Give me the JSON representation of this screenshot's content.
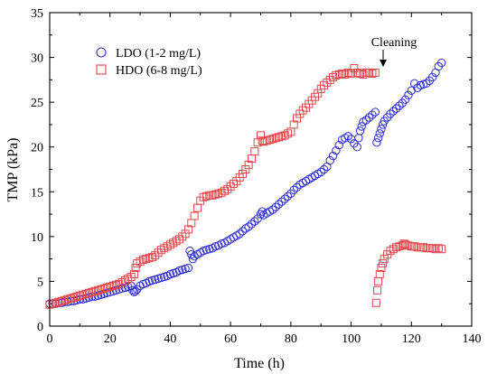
{
  "chart_data": {
    "type": "scatter",
    "title": "",
    "xlabel": "Time (h)",
    "ylabel": "TMP (kPa)",
    "xlim": [
      0,
      140
    ],
    "ylim": [
      0,
      35
    ],
    "xticks": [
      0,
      20,
      40,
      60,
      80,
      100,
      120,
      140
    ],
    "yticks": [
      0,
      5,
      10,
      15,
      20,
      25,
      30,
      35
    ],
    "grid": false,
    "legend_position": "top-left",
    "annotation": {
      "text": "Cleaning",
      "x": 109,
      "y": 29.2
    },
    "series": [
      {
        "name": "LDO (1-2 mg/L)",
        "marker": "circle",
        "color": "#2b2bd6",
        "points": [
          [
            0,
            2.5
          ],
          [
            1,
            2.5
          ],
          [
            2,
            2.5
          ],
          [
            3,
            2.6
          ],
          [
            4,
            2.6
          ],
          [
            5,
            2.7
          ],
          [
            6,
            2.7
          ],
          [
            7,
            2.8
          ],
          [
            8,
            2.8
          ],
          [
            9,
            2.9
          ],
          [
            10,
            3.0
          ],
          [
            11,
            3.0
          ],
          [
            12,
            3.1
          ],
          [
            13,
            3.2
          ],
          [
            14,
            3.3
          ],
          [
            15,
            3.3
          ],
          [
            16,
            3.4
          ],
          [
            17,
            3.5
          ],
          [
            18,
            3.6
          ],
          [
            19,
            3.7
          ],
          [
            20,
            3.8
          ],
          [
            21,
            3.9
          ],
          [
            22,
            4.0
          ],
          [
            23,
            4.1
          ],
          [
            24,
            4.2
          ],
          [
            25,
            4.3
          ],
          [
            26,
            4.4
          ],
          [
            27,
            4.5
          ],
          [
            27.5,
            4.0
          ],
          [
            28,
            3.8
          ],
          [
            28.5,
            3.9
          ],
          [
            29,
            4.1
          ],
          [
            30,
            4.5
          ],
          [
            31,
            4.7
          ],
          [
            32,
            4.8
          ],
          [
            33,
            5.0
          ],
          [
            34,
            5.1
          ],
          [
            35,
            5.2
          ],
          [
            36,
            5.3
          ],
          [
            37,
            5.4
          ],
          [
            38,
            5.5
          ],
          [
            39,
            5.6
          ],
          [
            40,
            5.8
          ],
          [
            41,
            5.9
          ],
          [
            42,
            6.0
          ],
          [
            43,
            6.2
          ],
          [
            44,
            6.3
          ],
          [
            45,
            6.4
          ],
          [
            46,
            6.5
          ],
          [
            46.5,
            8.4
          ],
          [
            47,
            8.0
          ],
          [
            47.5,
            7.5
          ],
          [
            48,
            7.8
          ],
          [
            49,
            8.0
          ],
          [
            50,
            8.2
          ],
          [
            51,
            8.4
          ],
          [
            52,
            8.5
          ],
          [
            53,
            8.6
          ],
          [
            54,
            8.7
          ],
          [
            55,
            8.9
          ],
          [
            56,
            9.0
          ],
          [
            57,
            9.2
          ],
          [
            58,
            9.3
          ],
          [
            59,
            9.5
          ],
          [
            60,
            9.7
          ],
          [
            61,
            9.9
          ],
          [
            62,
            10.1
          ],
          [
            63,
            10.3
          ],
          [
            64,
            10.6
          ],
          [
            65,
            10.9
          ],
          [
            66,
            11.1
          ],
          [
            67,
            11.4
          ],
          [
            68,
            11.7
          ],
          [
            69,
            12.0
          ],
          [
            70,
            12.5
          ],
          [
            70.5,
            12.8
          ],
          [
            71,
            12.4
          ],
          [
            72,
            12.6
          ],
          [
            73,
            12.8
          ],
          [
            74,
            13.0
          ],
          [
            75,
            13.3
          ],
          [
            76,
            13.6
          ],
          [
            77,
            13.9
          ],
          [
            78,
            14.2
          ],
          [
            79,
            14.5
          ],
          [
            80,
            14.8
          ],
          [
            81,
            15.2
          ],
          [
            82,
            15.5
          ],
          [
            83,
            15.8
          ],
          [
            84,
            16.0
          ],
          [
            85,
            16.2
          ],
          [
            86,
            16.4
          ],
          [
            87,
            16.6
          ],
          [
            88,
            16.8
          ],
          [
            89,
            17.0
          ],
          [
            90,
            17.2
          ],
          [
            91,
            17.5
          ],
          [
            92,
            17.8
          ],
          [
            93,
            18.5
          ],
          [
            94,
            19.0
          ],
          [
            95,
            19.6
          ],
          [
            96,
            20.2
          ],
          [
            97,
            20.8
          ],
          [
            98,
            21.0
          ],
          [
            99,
            21.2
          ],
          [
            100,
            20.9
          ],
          [
            101,
            20.4
          ],
          [
            102,
            20.0
          ],
          [
            102.5,
            21.0
          ],
          [
            103,
            21.8
          ],
          [
            103.5,
            22.3
          ],
          [
            104,
            22.8
          ],
          [
            105,
            23.0
          ],
          [
            106,
            23.3
          ],
          [
            107,
            23.6
          ],
          [
            108,
            23.9
          ],
          [
            108.5,
            20.5
          ],
          [
            109,
            21.0
          ],
          [
            109.5,
            21.5
          ],
          [
            110,
            22.0
          ],
          [
            110.5,
            22.5
          ],
          [
            111,
            22.9
          ],
          [
            112,
            23.3
          ],
          [
            113,
            23.7
          ],
          [
            114,
            24.0
          ],
          [
            115,
            24.3
          ],
          [
            116,
            24.6
          ],
          [
            117,
            24.9
          ],
          [
            118,
            25.3
          ],
          [
            119,
            25.8
          ],
          [
            120,
            26.3
          ],
          [
            121,
            27.1
          ],
          [
            122,
            26.6
          ],
          [
            123,
            26.9
          ],
          [
            124,
            27.0
          ],
          [
            125,
            27.1
          ],
          [
            126,
            27.4
          ],
          [
            127,
            27.8
          ],
          [
            128,
            28.3
          ],
          [
            129,
            29.0
          ],
          [
            130,
            29.4
          ]
        ]
      },
      {
        "name": "HDO (6-8 mg/L)",
        "marker": "square",
        "color": "#e0464a",
        "points": [
          [
            0,
            2.4
          ],
          [
            1,
            2.5
          ],
          [
            2,
            2.6
          ],
          [
            3,
            2.7
          ],
          [
            4,
            2.8
          ],
          [
            5,
            2.9
          ],
          [
            6,
            3.0
          ],
          [
            7,
            3.1
          ],
          [
            8,
            3.2
          ],
          [
            9,
            3.3
          ],
          [
            10,
            3.4
          ],
          [
            11,
            3.5
          ],
          [
            12,
            3.6
          ],
          [
            13,
            3.7
          ],
          [
            14,
            3.8
          ],
          [
            15,
            3.9
          ],
          [
            16,
            4.0
          ],
          [
            17,
            4.1
          ],
          [
            18,
            4.2
          ],
          [
            19,
            4.3
          ],
          [
            20,
            4.4
          ],
          [
            21,
            4.5
          ],
          [
            22,
            4.6
          ],
          [
            23,
            4.7
          ],
          [
            24,
            4.9
          ],
          [
            25,
            5.1
          ],
          [
            26,
            5.3
          ],
          [
            27,
            5.5
          ],
          [
            28,
            5.8
          ],
          [
            28.5,
            6.5
          ],
          [
            29,
            7.0
          ],
          [
            30,
            7.2
          ],
          [
            31,
            7.4
          ],
          [
            32,
            7.5
          ],
          [
            33,
            7.6
          ],
          [
            34,
            7.7
          ],
          [
            35,
            7.9
          ],
          [
            36,
            8.2
          ],
          [
            37,
            8.5
          ],
          [
            38,
            8.7
          ],
          [
            39,
            8.9
          ],
          [
            40,
            9.1
          ],
          [
            41,
            9.3
          ],
          [
            42,
            9.5
          ],
          [
            43,
            9.7
          ],
          [
            44,
            10.0
          ],
          [
            45,
            10.3
          ],
          [
            46,
            10.8
          ],
          [
            47,
            11.5
          ],
          [
            48,
            12.3
          ],
          [
            49,
            13.2
          ],
          [
            50,
            14.0
          ],
          [
            51,
            14.4
          ],
          [
            52,
            14.5
          ],
          [
            53,
            14.6
          ],
          [
            54,
            14.6
          ],
          [
            55,
            14.7
          ],
          [
            56,
            14.8
          ],
          [
            57,
            14.9
          ],
          [
            58,
            15.1
          ],
          [
            59,
            15.3
          ],
          [
            60,
            15.6
          ],
          [
            61,
            15.9
          ],
          [
            62,
            16.2
          ],
          [
            63,
            16.6
          ],
          [
            64,
            17.0
          ],
          [
            65,
            17.5
          ],
          [
            66,
            18.0
          ],
          [
            67,
            18.7
          ],
          [
            68,
            19.5
          ],
          [
            69,
            20.5
          ],
          [
            70,
            21.3
          ],
          [
            70.5,
            20.7
          ],
          [
            71,
            20.6
          ],
          [
            72,
            20.7
          ],
          [
            73,
            20.8
          ],
          [
            74,
            20.9
          ],
          [
            75,
            21.0
          ],
          [
            76,
            21.1
          ],
          [
            77,
            21.2
          ],
          [
            78,
            21.3
          ],
          [
            79,
            21.5
          ],
          [
            80,
            21.7
          ],
          [
            81,
            22.5
          ],
          [
            82,
            23.2
          ],
          [
            83,
            23.7
          ],
          [
            84,
            24.1
          ],
          [
            85,
            24.4
          ],
          [
            86,
            24.8
          ],
          [
            87,
            25.2
          ],
          [
            88,
            25.6
          ],
          [
            89,
            26.0
          ],
          [
            90,
            26.5
          ],
          [
            91,
            26.9
          ],
          [
            92,
            27.2
          ],
          [
            93,
            27.5
          ],
          [
            94,
            27.8
          ],
          [
            95,
            28.0
          ],
          [
            96,
            28.1
          ],
          [
            97,
            28.2
          ],
          [
            98,
            28.1
          ],
          [
            99,
            28.3
          ],
          [
            100,
            28.2
          ],
          [
            101,
            28.8
          ],
          [
            102,
            28.3
          ],
          [
            103,
            28.2
          ],
          [
            104,
            28.1
          ],
          [
            105,
            28.3
          ],
          [
            106,
            28.3
          ],
          [
            107,
            28.2
          ],
          [
            108,
            28.3
          ],
          [
            108.3,
            2.6
          ],
          [
            108.7,
            4.0
          ],
          [
            109,
            5.0
          ],
          [
            109.5,
            5.8
          ],
          [
            110,
            6.5
          ],
          [
            110.5,
            7.0
          ],
          [
            111,
            7.5
          ],
          [
            112,
            8.0
          ],
          [
            113,
            8.4
          ],
          [
            114,
            8.6
          ],
          [
            115,
            8.8
          ],
          [
            116,
            8.9
          ],
          [
            117,
            9.0
          ],
          [
            117.5,
            9.2
          ],
          [
            118,
            9.1
          ],
          [
            119,
            9.0
          ],
          [
            120,
            8.9
          ],
          [
            121,
            8.9
          ],
          [
            122,
            8.8
          ],
          [
            123,
            8.8
          ],
          [
            124,
            8.8
          ],
          [
            125,
            8.7
          ],
          [
            126,
            8.7
          ],
          [
            127,
            8.7
          ],
          [
            128,
            8.6
          ],
          [
            129,
            8.7
          ],
          [
            130,
            8.6
          ]
        ]
      }
    ]
  }
}
